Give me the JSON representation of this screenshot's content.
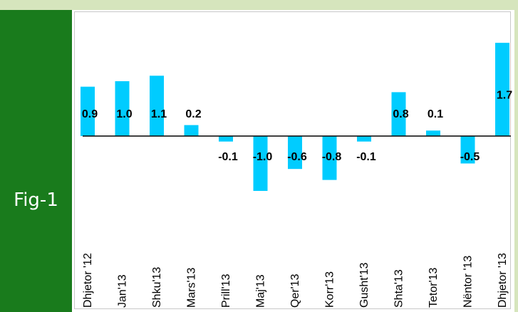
{
  "figure": {
    "label": "Fig-1"
  },
  "chart_data": {
    "type": "bar",
    "categories": [
      "Dhjetor '12",
      "Jan'13",
      "Shku'13",
      "Mars'13",
      "Prill'13",
      "Maj'13",
      "Qer'13",
      "Korr'13",
      "Gusht'13",
      "Shta'13",
      "Tetor'13",
      "Nëntor '13",
      "Dhjetor '13"
    ],
    "values": [
      0.9,
      1.0,
      1.1,
      0.2,
      -0.1,
      -1.0,
      -0.6,
      -0.8,
      -0.1,
      0.8,
      0.1,
      -0.5,
      1.7
    ],
    "data_labels": [
      "0.9",
      "1.0",
      "1.1",
      "0.2",
      "-0.1",
      "-1.0",
      "-0.6",
      "-0.8",
      "-0.1",
      "0.8",
      "0.1",
      "-0.5",
      "1.7"
    ],
    "bar_color": "#00ccff",
    "ylim": [
      -1.6,
      2.1
    ],
    "grid": false,
    "legend": "none",
    "title": "",
    "xlabel": "",
    "ylabel": ""
  }
}
